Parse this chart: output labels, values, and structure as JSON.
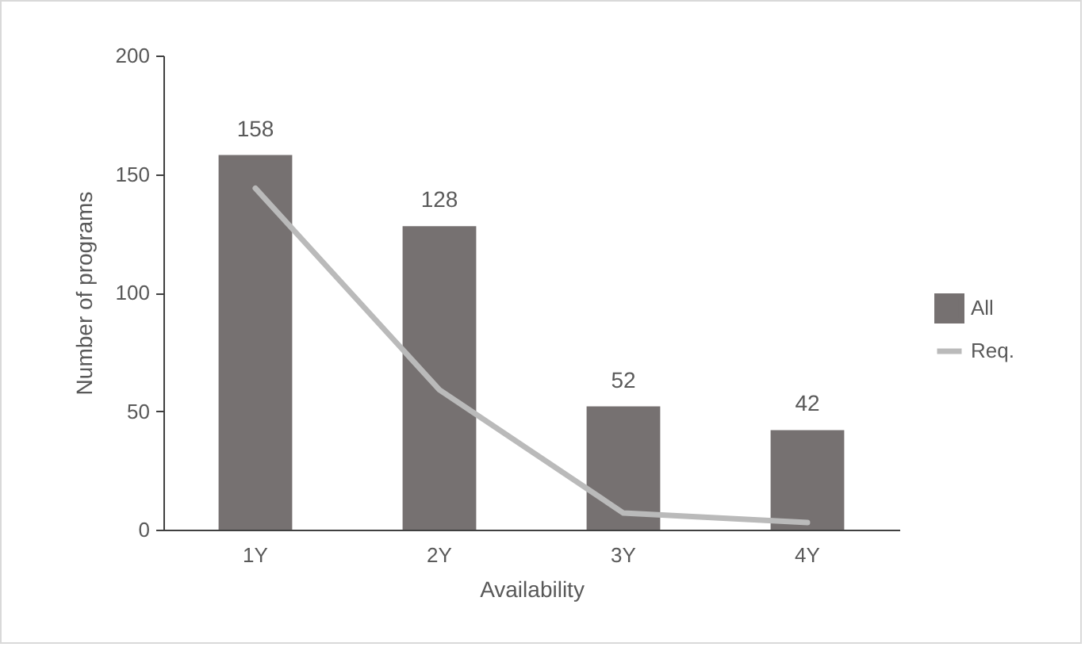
{
  "chart_data": {
    "type": "bar",
    "xlabel": "Availability",
    "ylabel": "Number of programs",
    "categories": [
      "1Y",
      "2Y",
      "3Y",
      "4Y"
    ],
    "series": [
      {
        "name": "All",
        "color": "#767171",
        "values": [
          158,
          128,
          52,
          42
        ],
        "value_labels": [
          "158",
          "128",
          "52",
          "42"
        ]
      },
      {
        "name": "Req.",
        "type": "line",
        "color": "#bababa",
        "values": [
          144,
          59,
          7,
          3
        ]
      }
    ],
    "ylim": [
      0,
      200
    ],
    "yticks": [
      0,
      50,
      100,
      150,
      200
    ],
    "grid": false,
    "legend": "right"
  }
}
